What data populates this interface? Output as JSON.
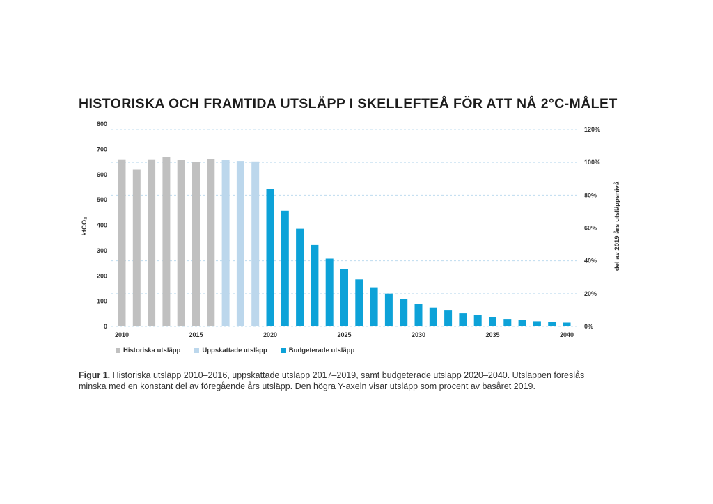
{
  "chart_data": {
    "type": "bar",
    "title": "HISTORISKA OCH FRAMTIDA UTSLÄPP I SKELLEFTEÅ FÖR ATT NÅ 2°C-MÅLET",
    "ylabel": "ktCO₂",
    "ylabel_right": "del av 2019 års utsläppsnivå",
    "ylim": [
      0,
      800
    ],
    "ylim_right": [
      0,
      1.2
    ],
    "yticks": [
      "0",
      "100",
      "200",
      "300",
      "400",
      "500",
      "600",
      "700",
      "800"
    ],
    "yticks_right": [
      "0%",
      "20%",
      "40%",
      "60%",
      "80%",
      "100%",
      "120%"
    ],
    "xticks": [
      "2010",
      "2015",
      "2020",
      "2025",
      "2030",
      "2035",
      "2040"
    ],
    "grid": "dashed horizontal at right-axis ticks",
    "legend_position": "bottom-left",
    "colors": {
      "Historiska utsläpp": "#c0c0c0",
      "Uppskattade utsläpp": "#bcd7ec",
      "Budgeterade utsläpp": "#0da2d8"
    },
    "series": [
      {
        "name": "Historiska utsläpp",
        "x": [
          2010,
          2011,
          2012,
          2013,
          2014,
          2015,
          2016
        ],
        "values": [
          658,
          620,
          658,
          668,
          657,
          650,
          662
        ]
      },
      {
        "name": "Uppskattade utsläpp",
        "x": [
          2017,
          2018,
          2019
        ],
        "values": [
          657,
          654,
          652
        ]
      },
      {
        "name": "Budgeterade utsläpp",
        "x": [
          2020,
          2021,
          2022,
          2023,
          2024,
          2025,
          2026,
          2027,
          2028,
          2029,
          2030,
          2031,
          2032,
          2033,
          2034,
          2035,
          2036,
          2037,
          2038,
          2039,
          2040
        ],
        "values": [
          543,
          457,
          386,
          322,
          268,
          226,
          186,
          155,
          130,
          108,
          90,
          75,
          63,
          52,
          44,
          36,
          30,
          25,
          21,
          18,
          15
        ]
      }
    ]
  },
  "caption": {
    "lead": "Figur 1.",
    "text": " Historiska utsläpp 2010–2016, uppskattade utsläpp 2017–2019, samt budgeterade utsläpp 2020–2040. Utsläppen föreslås minska med en konstant del av föregående års utsläpp. Den högra Y-axeln visar utsläpp som procent av basåret 2019."
  }
}
